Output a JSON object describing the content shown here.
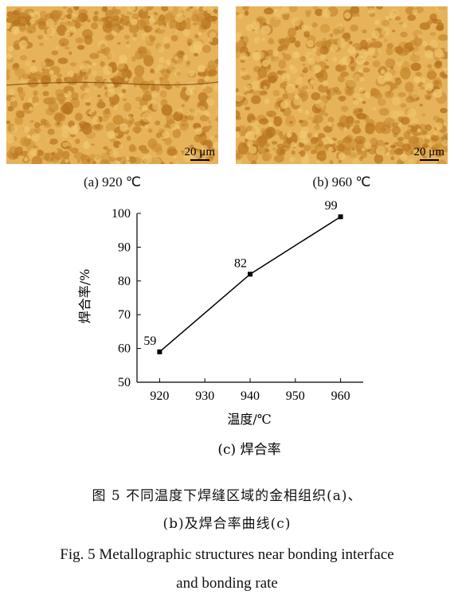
{
  "micrographs": [
    {
      "id": "a",
      "scale_label": "20 μm",
      "caption": "(a)  920 ℃"
    },
    {
      "id": "b",
      "scale_label": "20 μm",
      "caption": "(b)  960 ℃"
    }
  ],
  "chart_caption": "(c)  焊合率",
  "figure_caption": {
    "cn_line1": "图 5    不同温度下焊缝区域的金相组织(a)、",
    "cn_line2": "(b)及焊合率曲线(c)",
    "en_line1": "Fig. 5 Metallographic structures near bonding interface",
    "en_line2": "and bonding rate"
  },
  "colors": {
    "grain_light": "#e6b35a",
    "grain_dark": "#c8892e",
    "boundary": "#b8741f"
  },
  "chart_data": {
    "type": "line",
    "x": [
      920,
      940,
      960
    ],
    "y": [
      59,
      82,
      99
    ],
    "data_labels": [
      "59",
      "82",
      "99"
    ],
    "xlabel": "温度/℃",
    "ylabel": "焊合率/%",
    "xticks": [
      "920",
      "930",
      "940",
      "950",
      "960"
    ],
    "yticks": [
      "50",
      "60",
      "70",
      "80",
      "90",
      "100"
    ],
    "xlim": [
      915,
      965
    ],
    "ylim": [
      50,
      100
    ],
    "grid": false
  }
}
